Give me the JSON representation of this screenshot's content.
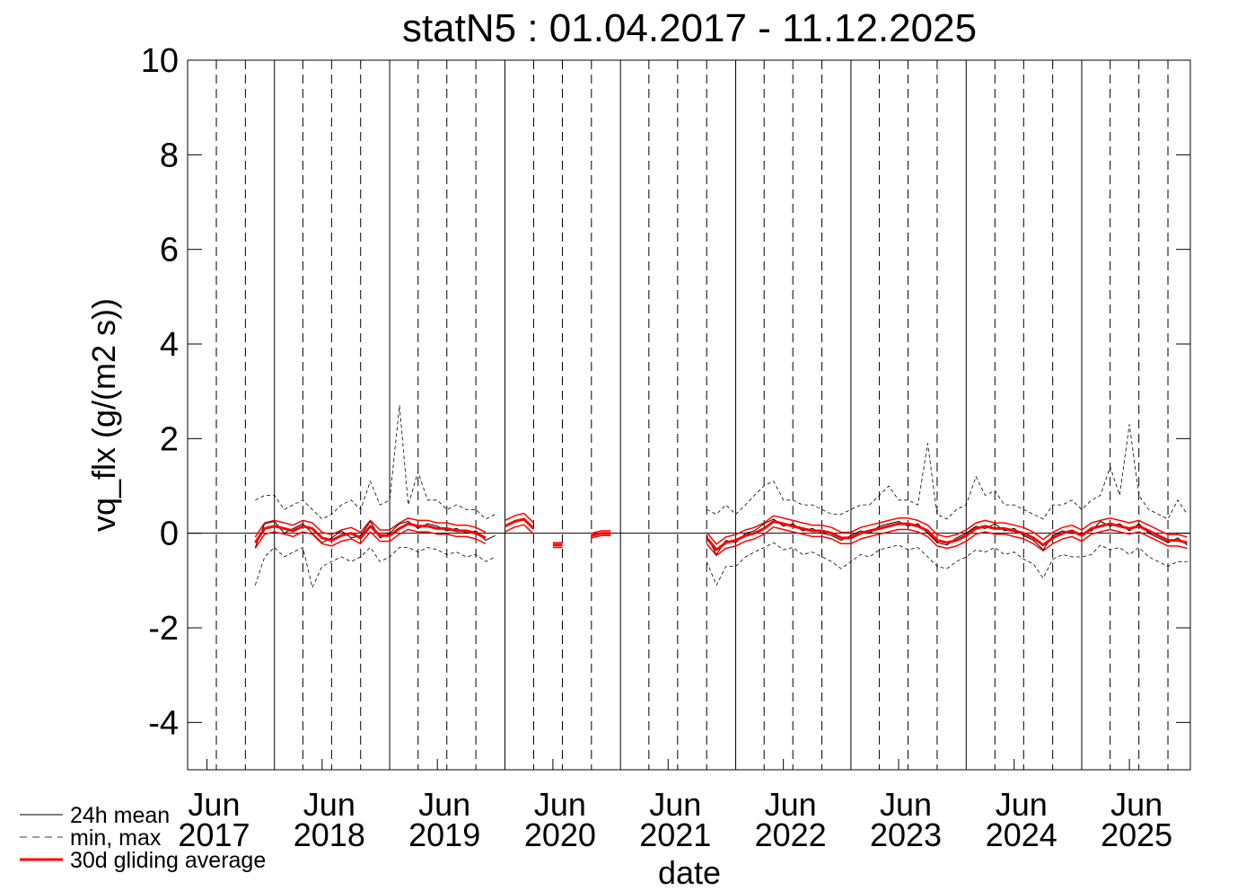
{
  "chart_data": {
    "type": "line",
    "title": "statN5 : 01.04.2017 - 11.12.2025",
    "x_label": "date",
    "y_label": "vq_flx (g/(m2 s))",
    "xlim": [
      "2017-04-01",
      "2025-12-11"
    ],
    "ylim": [
      -5,
      10
    ],
    "yticks": [
      -4,
      -2,
      0,
      2,
      4,
      6,
      8,
      10
    ],
    "xticks": [
      {
        "value": "2017-06",
        "label": [
          "Jun",
          "2017"
        ]
      },
      {
        "value": "2018-06",
        "label": [
          "Jun",
          "2018"
        ]
      },
      {
        "value": "2019-06",
        "label": [
          "Jun",
          "2019"
        ]
      },
      {
        "value": "2020-06",
        "label": [
          "Jun",
          "2020"
        ]
      },
      {
        "value": "2021-06",
        "label": [
          "Jun",
          "2021"
        ]
      },
      {
        "value": "2022-06",
        "label": [
          "Jun",
          "2022"
        ]
      },
      {
        "value": "2023-06",
        "label": [
          "Jun",
          "2023"
        ]
      },
      {
        "value": "2024-06",
        "label": [
          "Jun",
          "2024"
        ]
      },
      {
        "value": "2025-06",
        "label": [
          "Jun",
          "2025"
        ]
      }
    ],
    "xgrid_major": [
      "2018-01",
      "2019-01",
      "2020-01",
      "2021-01",
      "2022-01",
      "2023-01",
      "2024-01",
      "2025-01"
    ],
    "xgrid_minor": [
      "2017-07",
      "2017-10",
      "2018-04",
      "2018-07",
      "2018-10",
      "2019-04",
      "2019-07",
      "2019-10",
      "2020-04",
      "2020-07",
      "2020-10",
      "2021-04",
      "2021-07",
      "2021-10",
      "2022-04",
      "2022-07",
      "2022-10",
      "2023-04",
      "2023-07",
      "2023-10",
      "2024-04",
      "2024-07",
      "2024-10",
      "2025-04",
      "2025-07",
      "2025-10"
    ],
    "zero_line": 0,
    "legend": "bottom-left",
    "x": [
      "2017-11",
      "2017-12",
      "2018-01",
      "2018-02",
      "2018-03",
      "2018-04",
      "2018-05",
      "2018-06",
      "2018-07",
      "2018-08",
      "2018-09",
      "2018-10",
      "2018-11",
      "2018-12",
      "2019-01",
      "2019-02",
      "2019-03",
      "2019-04",
      "2019-05",
      "2019-06",
      "2019-07",
      "2019-08",
      "2019-09",
      "2019-10",
      "2019-11",
      "2019-12",
      "2020-01",
      "2020-02",
      "2020-03",
      "2020-04",
      "2020-05",
      "2020-06",
      "2020-07",
      "2020-08",
      "2020-09",
      "2020-10",
      "2020-11",
      "2020-12",
      "2021-01",
      "2021-02",
      "2021-03",
      "2021-04",
      "2021-05",
      "2021-06",
      "2021-07",
      "2021-08",
      "2021-09",
      "2021-10",
      "2021-11",
      "2021-12",
      "2022-01",
      "2022-02",
      "2022-03",
      "2022-04",
      "2022-05",
      "2022-06",
      "2022-07",
      "2022-08",
      "2022-09",
      "2022-10",
      "2022-11",
      "2022-12",
      "2023-01",
      "2023-02",
      "2023-03",
      "2023-04",
      "2023-05",
      "2023-06",
      "2023-07",
      "2023-08",
      "2023-09",
      "2023-10",
      "2023-11",
      "2023-12",
      "2024-01",
      "2024-02",
      "2024-03",
      "2024-04",
      "2024-05",
      "2024-06",
      "2024-07",
      "2024-08",
      "2024-09",
      "2024-10",
      "2024-11",
      "2024-12",
      "2025-01",
      "2025-02",
      "2025-03",
      "2025-04",
      "2025-05",
      "2025-06",
      "2025-07",
      "2025-08",
      "2025-09",
      "2025-10",
      "2025-11",
      "2025-12"
    ],
    "series": [
      {
        "name": "24h mean",
        "color": "#000000",
        "width": 1,
        "values": [
          -0.3,
          0.2,
          0.25,
          0.0,
          0.1,
          0.2,
          0.0,
          -0.2,
          -0.1,
          0.05,
          -0.1,
          -0.05,
          0.25,
          -0.1,
          0.0,
          0.2,
          0.25,
          0.1,
          0.2,
          0.15,
          0.05,
          0.1,
          0.0,
          0.05,
          -0.15,
          -0.05,
          null,
          null,
          null,
          null,
          null,
          null,
          null,
          null,
          null,
          null,
          null,
          null,
          null,
          null,
          null,
          null,
          null,
          null,
          null,
          null,
          null,
          -0.05,
          -0.45,
          -0.15,
          -0.2,
          0.0,
          0.05,
          0.2,
          0.3,
          0.15,
          0.2,
          0.05,
          0.1,
          0.0,
          -0.05,
          -0.15,
          -0.05,
          0.05,
          0.0,
          0.15,
          0.2,
          0.25,
          0.15,
          0.2,
          0.0,
          -0.2,
          -0.25,
          -0.1,
          0.0,
          0.15,
          0.1,
          0.2,
          0.05,
          0.1,
          -0.05,
          -0.15,
          -0.35,
          -0.05,
          0.05,
          0.0,
          0.0,
          0.05,
          0.25,
          0.15,
          0.2,
          0.05,
          0.2,
          0.0,
          -0.1,
          -0.2,
          -0.1,
          -0.25
        ]
      },
      {
        "name": "min, max",
        "color": "#000000",
        "width": 0.8,
        "dashed": true,
        "low": [
          -1.1,
          -0.5,
          -0.3,
          -0.5,
          -0.4,
          -0.3,
          -1.15,
          -0.7,
          -0.6,
          -0.5,
          -0.6,
          -0.5,
          -0.3,
          -0.6,
          -0.5,
          -0.3,
          -0.3,
          -0.4,
          -0.3,
          -0.35,
          -0.45,
          -0.4,
          -0.5,
          -0.45,
          -0.6,
          -0.5,
          null,
          null,
          null,
          null,
          null,
          null,
          null,
          null,
          null,
          null,
          null,
          null,
          null,
          null,
          null,
          null,
          null,
          null,
          null,
          null,
          null,
          -0.6,
          -1.1,
          -0.7,
          -0.7,
          -0.5,
          -0.4,
          -0.3,
          -0.2,
          -0.35,
          -0.3,
          -0.45,
          -0.4,
          -0.5,
          -0.6,
          -0.75,
          -0.6,
          -0.45,
          -0.5,
          -0.35,
          -0.3,
          -0.25,
          -0.35,
          -0.3,
          -0.5,
          -0.7,
          -0.75,
          -0.6,
          -0.5,
          -0.35,
          -0.4,
          -0.3,
          -0.45,
          -0.4,
          -0.55,
          -0.65,
          -0.95,
          -0.55,
          -0.45,
          -0.5,
          -0.5,
          -0.45,
          -0.25,
          -0.35,
          -0.3,
          -0.45,
          -0.3,
          -0.5,
          -0.6,
          -0.7,
          -0.6,
          -0.6
        ],
        "high": [
          0.7,
          0.8,
          0.8,
          0.5,
          0.6,
          0.7,
          0.5,
          0.3,
          0.4,
          0.6,
          0.7,
          0.5,
          1.1,
          0.6,
          0.7,
          2.7,
          0.6,
          1.3,
          0.7,
          0.7,
          0.5,
          0.6,
          0.5,
          0.5,
          0.3,
          0.4,
          null,
          null,
          null,
          null,
          null,
          null,
          null,
          null,
          null,
          null,
          null,
          null,
          null,
          null,
          null,
          null,
          null,
          null,
          null,
          null,
          null,
          0.5,
          0.4,
          0.6,
          0.4,
          0.6,
          0.8,
          1.0,
          1.1,
          0.7,
          0.7,
          0.6,
          0.6,
          0.5,
          0.4,
          0.4,
          0.5,
          0.6,
          0.6,
          0.8,
          1.0,
          0.7,
          0.7,
          0.6,
          1.9,
          0.4,
          0.3,
          0.5,
          0.6,
          1.2,
          0.8,
          0.9,
          0.6,
          0.6,
          0.5,
          0.4,
          0.3,
          0.6,
          0.6,
          0.7,
          0.5,
          0.7,
          0.8,
          1.4,
          0.8,
          2.3,
          0.8,
          0.5,
          0.4,
          0.3,
          0.7,
          0.4
        ]
      },
      {
        "name": "30d gliding average",
        "color": "#ff0000",
        "width": 3,
        "band_width": 1.5,
        "values": [
          -0.2,
          0.1,
          0.15,
          0.1,
          0.05,
          0.15,
          0.1,
          -0.1,
          -0.15,
          -0.05,
          0.0,
          -0.1,
          0.15,
          -0.05,
          -0.05,
          0.1,
          0.2,
          0.15,
          0.15,
          0.1,
          0.1,
          0.05,
          0.05,
          0.0,
          -0.1,
          null,
          0.15,
          0.25,
          0.3,
          0.1,
          null,
          -0.25,
          -0.25,
          null,
          null,
          -0.05,
          0.0,
          0.0,
          null,
          null,
          null,
          null,
          null,
          null,
          null,
          null,
          null,
          -0.1,
          -0.35,
          -0.2,
          -0.15,
          -0.05,
          0.0,
          0.1,
          0.25,
          0.2,
          0.15,
          0.1,
          0.05,
          0.05,
          0.0,
          -0.1,
          -0.1,
          0.0,
          0.05,
          0.1,
          0.15,
          0.2,
          0.2,
          0.15,
          0.05,
          -0.15,
          -0.2,
          -0.15,
          -0.05,
          0.1,
          0.15,
          0.1,
          0.1,
          0.05,
          0.0,
          -0.1,
          -0.25,
          -0.1,
          0.0,
          0.05,
          -0.05,
          0.1,
          0.15,
          0.2,
          0.15,
          0.1,
          0.15,
          0.05,
          -0.05,
          -0.15,
          -0.15,
          -0.2
        ],
        "low": [
          -0.32,
          -0.02,
          0.03,
          -0.02,
          -0.07,
          0.03,
          -0.02,
          -0.22,
          -0.27,
          -0.17,
          -0.12,
          -0.22,
          0.03,
          -0.17,
          -0.17,
          -0.02,
          0.08,
          0.03,
          0.03,
          -0.02,
          -0.02,
          -0.07,
          -0.07,
          -0.12,
          -0.22,
          null,
          0.03,
          0.13,
          0.18,
          -0.02,
          null,
          -0.3,
          -0.3,
          null,
          null,
          -0.1,
          -0.05,
          -0.05,
          null,
          null,
          null,
          null,
          null,
          null,
          null,
          null,
          null,
          -0.22,
          -0.47,
          -0.32,
          -0.27,
          -0.17,
          -0.12,
          -0.02,
          0.13,
          0.08,
          0.03,
          -0.02,
          -0.07,
          -0.07,
          -0.12,
          -0.22,
          -0.22,
          -0.12,
          -0.07,
          -0.02,
          0.03,
          0.08,
          0.08,
          0.03,
          -0.07,
          -0.27,
          -0.32,
          -0.27,
          -0.17,
          -0.02,
          0.03,
          -0.02,
          -0.02,
          -0.07,
          -0.12,
          -0.22,
          -0.37,
          -0.22,
          -0.12,
          -0.07,
          -0.17,
          -0.02,
          0.03,
          0.08,
          0.03,
          -0.02,
          0.03,
          -0.07,
          -0.17,
          -0.27,
          -0.27,
          -0.32
        ],
        "high": [
          -0.08,
          0.22,
          0.27,
          0.22,
          0.17,
          0.27,
          0.22,
          0.02,
          -0.03,
          0.07,
          0.12,
          0.02,
          0.27,
          0.07,
          0.07,
          0.22,
          0.32,
          0.27,
          0.27,
          0.22,
          0.22,
          0.17,
          0.17,
          0.12,
          0.02,
          null,
          0.27,
          0.37,
          0.42,
          0.22,
          null,
          -0.2,
          -0.2,
          null,
          null,
          0.0,
          0.05,
          0.05,
          null,
          null,
          null,
          null,
          null,
          null,
          null,
          null,
          null,
          0.02,
          -0.23,
          -0.08,
          -0.03,
          0.07,
          0.12,
          0.22,
          0.37,
          0.32,
          0.27,
          0.22,
          0.17,
          0.17,
          0.12,
          0.02,
          0.02,
          0.12,
          0.17,
          0.22,
          0.27,
          0.32,
          0.32,
          0.27,
          0.17,
          -0.03,
          -0.08,
          -0.03,
          0.07,
          0.22,
          0.27,
          0.22,
          0.22,
          0.17,
          0.12,
          0.02,
          -0.13,
          0.02,
          0.12,
          0.17,
          0.07,
          0.22,
          0.27,
          0.32,
          0.27,
          0.22,
          0.27,
          0.17,
          0.07,
          -0.03,
          -0.03,
          -0.08
        ]
      }
    ]
  }
}
